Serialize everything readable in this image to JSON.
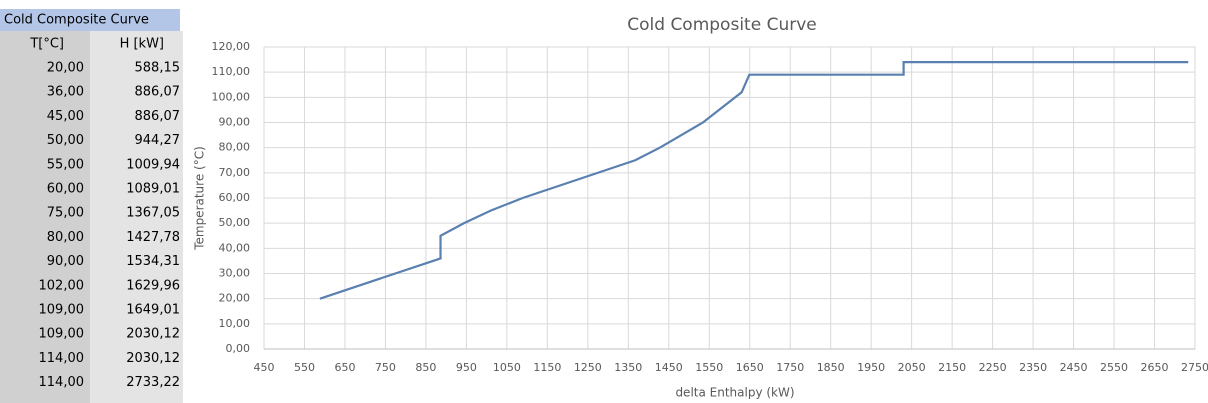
{
  "table": {
    "title": "Cold Composite Curve",
    "columns": [
      "T[°C]",
      "H [kW]"
    ],
    "rows": [
      [
        "20,00",
        "588,15"
      ],
      [
        "36,00",
        "886,07"
      ],
      [
        "45,00",
        "886,07"
      ],
      [
        "50,00",
        "944,27"
      ],
      [
        "55,00",
        "1009,94"
      ],
      [
        "60,00",
        "1089,01"
      ],
      [
        "75,00",
        "1367,05"
      ],
      [
        "80,00",
        "1427,78"
      ],
      [
        "90,00",
        "1534,31"
      ],
      [
        "102,00",
        "1629,96"
      ],
      [
        "109,00",
        "1649,01"
      ],
      [
        "109,00",
        "2030,12"
      ],
      [
        "114,00",
        "2030,12"
      ],
      [
        "114,00",
        "2733,22"
      ]
    ]
  },
  "chart_data": {
    "type": "line",
    "title": "Cold Composite Curve",
    "x_label": "delta Enthalpy  (kW)",
    "y_label": "Temperature  (°C)",
    "x": [
      588.15,
      886.07,
      886.07,
      944.27,
      1009.94,
      1089.01,
      1367.05,
      1427.78,
      1534.31,
      1629.96,
      1649.01,
      2030.12,
      2030.12,
      2733.22
    ],
    "values": [
      20,
      36,
      45,
      50,
      55,
      60,
      75,
      80,
      90,
      102,
      109,
      109,
      114,
      114
    ],
    "color": "#5a80b0",
    "grid": true,
    "xlim": [
      450,
      2750
    ],
    "xticks": [
      450,
      550,
      650,
      750,
      850,
      950,
      1050,
      1150,
      1250,
      1350,
      1450,
      1550,
      1650,
      1750,
      1850,
      1950,
      2050,
      2150,
      2250,
      2350,
      2450,
      2550,
      2650,
      2750
    ],
    "ylim": [
      0,
      120
    ],
    "yticks": [
      {
        "value": 0,
        "label": "0,00"
      },
      {
        "value": 10,
        "label": "10,00"
      },
      {
        "value": 20,
        "label": "20,00"
      },
      {
        "value": 30,
        "label": "30,00"
      },
      {
        "value": 40,
        "label": "40,00"
      },
      {
        "value": 50,
        "label": "50,00"
      },
      {
        "value": 60,
        "label": "60,00"
      },
      {
        "value": 70,
        "label": "70,00"
      },
      {
        "value": 80,
        "label": "80,00"
      },
      {
        "value": 90,
        "label": "90,00"
      },
      {
        "value": 100,
        "label": "100,00"
      },
      {
        "value": 110,
        "label": "110,00"
      },
      {
        "value": 120,
        "label": "120,00"
      }
    ]
  }
}
